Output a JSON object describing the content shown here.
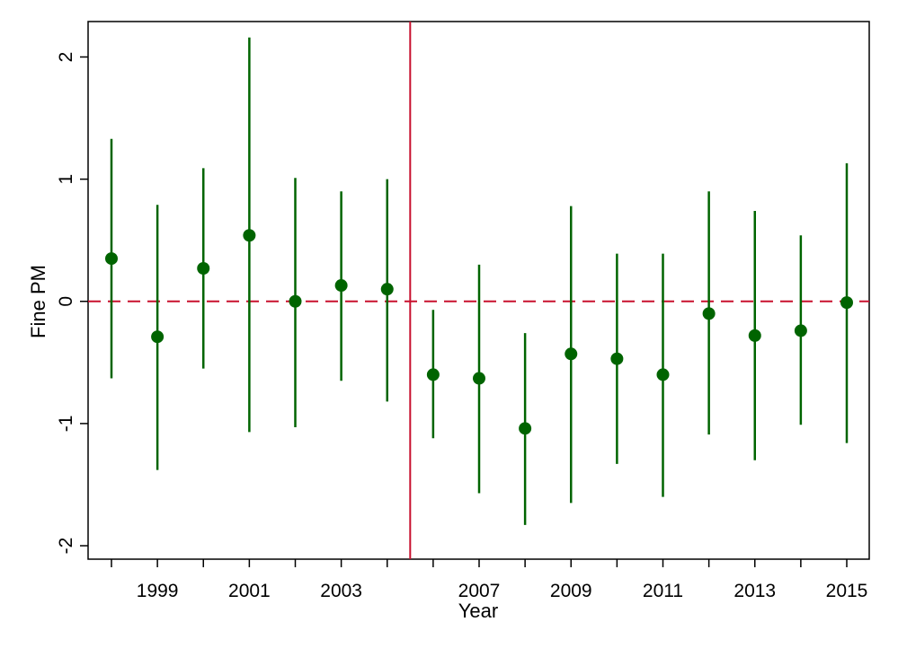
{
  "chart_data": {
    "type": "scatter",
    "subtype": "coefficient plot with confidence intervals",
    "title": "",
    "xlabel": "Year",
    "ylabel": "Fine PM",
    "x": [
      1998,
      1999,
      2000,
      2001,
      2002,
      2003,
      2004,
      2006,
      2007,
      2008,
      2009,
      2010,
      2011,
      2012,
      2013,
      2014,
      2015
    ],
    "series": [
      {
        "name": "estimate",
        "values": [
          0.35,
          -0.29,
          0.27,
          0.54,
          0.0,
          0.13,
          0.1,
          -0.6,
          -0.63,
          -1.04,
          -0.43,
          -0.47,
          -0.6,
          -0.1,
          -0.28,
          -0.24,
          -0.01
        ]
      },
      {
        "name": "ci_upper",
        "values": [
          1.33,
          0.79,
          1.09,
          2.16,
          1.01,
          0.9,
          1.0,
          -0.07,
          0.3,
          -0.26,
          0.78,
          0.39,
          0.39,
          0.9,
          0.74,
          0.54,
          1.13
        ]
      },
      {
        "name": "ci_lower",
        "values": [
          -0.63,
          -1.38,
          -0.55,
          -1.07,
          -1.03,
          -0.65,
          -0.82,
          -1.12,
          -1.57,
          -1.83,
          -1.65,
          -1.33,
          -1.6,
          -1.09,
          -1.3,
          -1.01,
          -1.16
        ]
      }
    ],
    "xtick_labels": [
      "1999",
      "2001",
      "2003",
      "2007",
      "2009",
      "2011",
      "2013",
      "2015"
    ],
    "yticks": [
      2,
      1,
      0,
      -1,
      -2
    ],
    "ytick_labels": [
      "2",
      "1",
      "0",
      "-1",
      "-2"
    ],
    "ylim": [
      -2.11,
      2.29
    ],
    "reference_lines": {
      "horizontal_y": 0,
      "vertical_between": [
        2004,
        2006
      ]
    },
    "grid": false,
    "legend": "none",
    "colors": {
      "points": "#006400",
      "reference": "#c8102e"
    }
  }
}
